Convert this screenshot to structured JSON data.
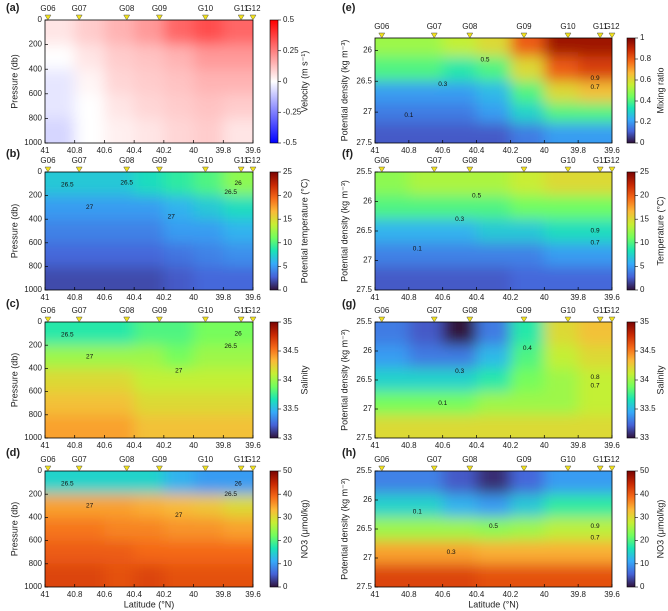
{
  "chart_data": [
    {
      "type": "heatmap",
      "panel_label": "(a)",
      "y_label": "Pressure (db)",
      "colorbar_label": "Velocity (m s⁻¹)",
      "xlim": [
        41,
        39.6
      ],
      "xticks": [
        41,
        40.8,
        40.6,
        40.4,
        40.2,
        40,
        39.8,
        39.6
      ],
      "ylim": [
        0,
        1000
      ],
      "yticks": [
        0,
        200,
        400,
        600,
        800,
        1000
      ],
      "clim": [
        -0.5,
        0.5
      ],
      "cticks": [
        -0.5,
        -0.25,
        0,
        0.25,
        0.5
      ],
      "colors": [
        "#0000ff",
        "#ffffff",
        "#ff0000"
      ],
      "stations": [
        "G06",
        "G07",
        "G08",
        "G09",
        "G10",
        "G11",
        "G12"
      ],
      "station_x": [
        40.98,
        40.77,
        40.45,
        40.23,
        39.92,
        39.68,
        39.6
      ],
      "x": [
        40.9,
        40.7,
        40.5,
        40.3,
        40.1,
        39.9,
        39.7
      ],
      "y": [
        100,
        300,
        500,
        700,
        900
      ],
      "z": [
        [
          0.05,
          0.1,
          0.15,
          0.2,
          0.3,
          0.35,
          0.3
        ],
        [
          0,
          0.05,
          0.1,
          0.12,
          0.15,
          0.2,
          0.2
        ],
        [
          -0.05,
          0.02,
          0.08,
          0.1,
          0.12,
          0.15,
          0.15
        ],
        [
          -0.05,
          0,
          0.05,
          0.08,
          0.1,
          0.12,
          0.1
        ],
        [
          -0.08,
          0,
          0.03,
          0.05,
          0.08,
          0.1,
          0.05
        ]
      ],
      "annotations": []
    },
    {
      "type": "heatmap",
      "panel_label": "(b)",
      "y_label": "Pressure (db)",
      "colorbar_label": "Potential temperature (°C)",
      "xlim": [
        41,
        39.6
      ],
      "xticks": [
        41,
        40.8,
        40.6,
        40.4,
        40.2,
        40,
        39.8,
        39.6
      ],
      "ylim": [
        0,
        1000
      ],
      "yticks": [
        0,
        200,
        400,
        600,
        800,
        1000
      ],
      "clim": [
        0,
        25
      ],
      "cticks": [
        0,
        5,
        10,
        15,
        20,
        25
      ],
      "colors": [
        "#30123b",
        "#4662d7",
        "#36aaf9",
        "#1ae4b6",
        "#72fe5e",
        "#c7ef34",
        "#fbb938",
        "#f56918",
        "#c92903",
        "#7a0403"
      ],
      "stations": [
        "G06",
        "G07",
        "G08",
        "G09",
        "G10",
        "G11",
        "G12"
      ],
      "station_x": [
        40.98,
        40.77,
        40.45,
        40.23,
        39.92,
        39.68,
        39.6
      ],
      "x": [
        40.9,
        40.7,
        40.5,
        40.3,
        40.1,
        39.9,
        39.7
      ],
      "y": [
        100,
        300,
        500,
        700,
        900
      ],
      "z": [
        [
          7,
          7,
          7,
          8,
          9,
          10,
          12
        ],
        [
          5,
          5,
          5,
          5,
          6,
          7,
          8
        ],
        [
          4,
          4,
          4,
          4,
          5,
          5,
          6
        ],
        [
          3,
          3,
          3,
          3,
          3.5,
          4,
          4.5
        ],
        [
          2,
          2,
          2,
          2,
          2.5,
          3,
          3
        ]
      ],
      "annotations": [
        {
          "text": "26.5",
          "x": 40.85,
          "y": 110
        },
        {
          "text": "26.5",
          "x": 40.45,
          "y": 90
        },
        {
          "text": "27",
          "x": 40.7,
          "y": 300
        },
        {
          "text": "27",
          "x": 40.15,
          "y": 380
        },
        {
          "text": "26.5",
          "x": 39.75,
          "y": 170
        },
        {
          "text": "26",
          "x": 39.7,
          "y": 95
        }
      ]
    },
    {
      "type": "heatmap",
      "panel_label": "(c)",
      "y_label": "Pressure (db)",
      "colorbar_label": "Salinity",
      "xlim": [
        41,
        39.6
      ],
      "xticks": [
        41,
        40.8,
        40.6,
        40.4,
        40.2,
        40,
        39.8,
        39.6
      ],
      "ylim": [
        0,
        1000
      ],
      "yticks": [
        0,
        200,
        400,
        600,
        800,
        1000
      ],
      "clim": [
        33,
        35
      ],
      "cticks": [
        33,
        33.5,
        34,
        34.5,
        35
      ],
      "colors": [
        "#30123b",
        "#4662d7",
        "#36aaf9",
        "#1ae4b6",
        "#72fe5e",
        "#c7ef34",
        "#fbb938",
        "#f56918",
        "#c92903",
        "#7a0403"
      ],
      "stations": [
        "G06",
        "G07",
        "G08",
        "G09",
        "G10",
        "G11",
        "G12"
      ],
      "station_x": [
        40.98,
        40.77,
        40.45,
        40.23,
        39.92,
        39.68,
        39.6
      ],
      "x": [
        40.9,
        40.7,
        40.5,
        40.3,
        40.1,
        39.9,
        39.7
      ],
      "y": [
        100,
        300,
        500,
        700,
        900
      ],
      "z": [
        [
          33.7,
          33.7,
          33.7,
          33.8,
          33.8,
          33.9,
          33.9
        ],
        [
          34,
          34,
          34,
          34,
          33.9,
          34,
          34
        ],
        [
          34.2,
          34.2,
          34.2,
          34.1,
          34.1,
          34.1,
          34.1
        ],
        [
          34.3,
          34.3,
          34.3,
          34.2,
          34.2,
          34.2,
          34.2
        ],
        [
          34.4,
          34.4,
          34.4,
          34.3,
          34.3,
          34.3,
          34.3
        ]
      ],
      "annotations": [
        {
          "text": "26.5",
          "x": 40.85,
          "y": 110
        },
        {
          "text": "27",
          "x": 40.7,
          "y": 300
        },
        {
          "text": "27",
          "x": 40.1,
          "y": 420
        },
        {
          "text": "26.5",
          "x": 39.75,
          "y": 210
        },
        {
          "text": "26",
          "x": 39.7,
          "y": 100
        }
      ]
    },
    {
      "type": "heatmap",
      "panel_label": "(d)",
      "y_label": "Pressure (db)",
      "colorbar_label": "NO3 (μmol/kg)",
      "x_label": "Latitude (°N)",
      "xlim": [
        41,
        39.6
      ],
      "xticks": [
        41,
        40.8,
        40.6,
        40.4,
        40.2,
        40,
        39.8,
        39.6
      ],
      "ylim": [
        0,
        1000
      ],
      "yticks": [
        0,
        200,
        400,
        600,
        800,
        1000
      ],
      "clim": [
        0,
        50
      ],
      "cticks": [
        0,
        10,
        20,
        30,
        40,
        50
      ],
      "colors": [
        "#30123b",
        "#4662d7",
        "#36aaf9",
        "#1ae4b6",
        "#72fe5e",
        "#c7ef34",
        "#fbb938",
        "#f56918",
        "#c92903",
        "#7a0403"
      ],
      "stations": [
        "G06",
        "G07",
        "G08",
        "G09",
        "G10",
        "G11",
        "G12"
      ],
      "station_x": [
        40.98,
        40.77,
        40.45,
        40.23,
        39.92,
        39.68,
        39.6
      ],
      "x": [
        40.9,
        40.7,
        40.5,
        40.3,
        40.1,
        39.9,
        39.7
      ],
      "y": [
        100,
        300,
        500,
        700,
        900
      ],
      "z": [
        [
          15,
          15,
          15,
          15,
          12,
          10,
          10
        ],
        [
          35,
          35,
          35,
          34,
          33,
          32,
          30
        ],
        [
          38,
          38,
          37,
          37,
          36,
          36,
          35
        ],
        [
          40,
          40,
          40,
          39,
          39,
          39,
          39
        ],
        [
          42,
          42,
          41,
          42,
          41,
          41,
          41
        ]
      ],
      "annotations": [
        {
          "text": "26.5",
          "x": 40.85,
          "y": 110
        },
        {
          "text": "27",
          "x": 40.7,
          "y": 300
        },
        {
          "text": "27",
          "x": 40.1,
          "y": 380
        },
        {
          "text": "26.5",
          "x": 39.75,
          "y": 200
        },
        {
          "text": "26",
          "x": 39.7,
          "y": 110
        }
      ]
    },
    {
      "type": "heatmap",
      "panel_label": "(e)",
      "y_label": "Potential density (kg m⁻³)",
      "colorbar_label": "Mixing ratio",
      "xlim": [
        41,
        39.6
      ],
      "xticks": [
        41,
        40.8,
        40.6,
        40.4,
        40.2,
        40,
        39.8,
        39.6
      ],
      "ylim": [
        25.8,
        27.5
      ],
      "yticks": [
        26,
        26.5,
        27,
        27.5
      ],
      "clim": [
        0,
        1
      ],
      "cticks": [
        0,
        0.2,
        0.4,
        0.6,
        0.8,
        1
      ],
      "colors": [
        "#30123b",
        "#4662d7",
        "#36aaf9",
        "#1ae4b6",
        "#72fe5e",
        "#c7ef34",
        "#fbb938",
        "#f56918",
        "#c92903",
        "#7a0403"
      ],
      "stations": [
        "G06",
        "G07",
        "G08",
        "G09",
        "G10",
        "G11",
        "G12"
      ],
      "station_x": [
        40.96,
        40.65,
        40.44,
        40.12,
        39.86,
        39.67,
        39.6
      ],
      "x": [
        40.9,
        40.7,
        40.5,
        40.3,
        40.1,
        39.9,
        39.7
      ],
      "y": [
        25.9,
        26.3,
        26.7,
        27.0,
        27.35
      ],
      "z": [
        [
          0.5,
          0.5,
          0.55,
          0.6,
          0.8,
          0.95,
          0.95
        ],
        [
          0.4,
          0.4,
          0.35,
          0.4,
          0.6,
          0.8,
          0.85
        ],
        [
          0.2,
          0.2,
          0.2,
          0.25,
          0.4,
          0.6,
          0.65
        ],
        [
          0.15,
          0.15,
          0.15,
          0.2,
          0.3,
          0.4,
          0.4
        ],
        [
          0.1,
          0.1,
          0.1,
          0.1,
          0.15,
          0.2,
          0.2
        ]
      ],
      "annotations": [
        {
          "text": "0.5",
          "x": 40.35,
          "y": 26.15
        },
        {
          "text": "0.3",
          "x": 40.6,
          "y": 26.55
        },
        {
          "text": "0.1",
          "x": 40.8,
          "y": 27.05
        },
        {
          "text": "0.9",
          "x": 39.7,
          "y": 26.45
        },
        {
          "text": "0.7",
          "x": 39.7,
          "y": 26.6
        }
      ]
    },
    {
      "type": "heatmap",
      "panel_label": "(f)",
      "y_label": "Potential density (kg m⁻³)",
      "colorbar_label": "Temperature (°C)",
      "xlim": [
        41,
        39.6
      ],
      "xticks": [
        41,
        40.8,
        40.6,
        40.4,
        40.2,
        40,
        39.8,
        39.6
      ],
      "ylim": [
        25.5,
        27.5
      ],
      "yticks": [
        25.5,
        26,
        26.5,
        27,
        27.5
      ],
      "clim": [
        0,
        25
      ],
      "cticks": [
        0,
        5,
        10,
        15,
        20,
        25
      ],
      "colors": [
        "#30123b",
        "#4662d7",
        "#36aaf9",
        "#1ae4b6",
        "#72fe5e",
        "#c7ef34",
        "#fbb938",
        "#f56918",
        "#c92903",
        "#7a0403"
      ],
      "stations": [
        "G06",
        "G07",
        "G08",
        "G09",
        "G10",
        "G11",
        "G12"
      ],
      "station_x": [
        40.96,
        40.65,
        40.44,
        40.12,
        39.86,
        39.67,
        39.6
      ],
      "x": [
        40.9,
        40.7,
        40.5,
        40.3,
        40.1,
        39.9,
        39.7
      ],
      "y": [
        25.7,
        26.1,
        26.5,
        26.9,
        27.3
      ],
      "z": [
        [
          12,
          13,
          13,
          13,
          14,
          15,
          15
        ],
        [
          10,
          10,
          10,
          10,
          11,
          11,
          11
        ],
        [
          6,
          6,
          6,
          7,
          7,
          8,
          8
        ],
        [
          4,
          4,
          4,
          4,
          4,
          5,
          5
        ],
        [
          2.5,
          2.5,
          2.5,
          2.5,
          3,
          3,
          3
        ]
      ],
      "annotations": [
        {
          "text": "0.5",
          "x": 40.4,
          "y": 25.9
        },
        {
          "text": "0.3",
          "x": 40.5,
          "y": 26.3
        },
        {
          "text": "0.1",
          "x": 40.75,
          "y": 26.8
        },
        {
          "text": "0.9",
          "x": 39.7,
          "y": 26.5
        },
        {
          "text": "0.7",
          "x": 39.7,
          "y": 26.7
        }
      ]
    },
    {
      "type": "heatmap",
      "panel_label": "(g)",
      "y_label": "Potential density (kg m⁻³)",
      "colorbar_label": "Salinity",
      "xlim": [
        41,
        39.6
      ],
      "xticks": [
        41,
        40.8,
        40.6,
        40.4,
        40.2,
        40,
        39.8,
        39.6
      ],
      "ylim": [
        25.5,
        27.5
      ],
      "yticks": [
        25.5,
        26,
        26.5,
        27,
        27.5
      ],
      "clim": [
        33,
        35
      ],
      "cticks": [
        33,
        33.5,
        34,
        34.5,
        35
      ],
      "colors": [
        "#30123b",
        "#4662d7",
        "#36aaf9",
        "#1ae4b6",
        "#72fe5e",
        "#c7ef34",
        "#fbb938",
        "#f56918",
        "#c92903",
        "#7a0403"
      ],
      "stations": [
        "G06",
        "G07",
        "G08",
        "G09",
        "G10",
        "G11",
        "G12"
      ],
      "station_x": [
        40.96,
        40.65,
        40.44,
        40.12,
        39.86,
        39.67,
        39.6
      ],
      "x": [
        40.9,
        40.7,
        40.5,
        40.3,
        40.1,
        39.9,
        39.7
      ],
      "y": [
        25.7,
        26.1,
        26.5,
        26.9,
        27.3
      ],
      "z": [
        [
          33.3,
          33.2,
          33.0,
          33.3,
          33.7,
          34.2,
          34.3
        ],
        [
          33.4,
          33.3,
          33.3,
          33.5,
          33.8,
          34.1,
          34.2
        ],
        [
          33.6,
          33.6,
          33.6,
          33.7,
          33.9,
          34.0,
          34.1
        ],
        [
          33.9,
          33.9,
          33.9,
          34.0,
          34.0,
          34.0,
          34.1
        ],
        [
          34.2,
          34.2,
          34.2,
          34.2,
          34.2,
          34.2,
          34.2
        ]
      ],
      "annotations": [
        {
          "text": "0.4",
          "x": 40.1,
          "y": 25.95
        },
        {
          "text": "0.3",
          "x": 40.5,
          "y": 26.35
        },
        {
          "text": "0.1",
          "x": 40.6,
          "y": 26.9
        },
        {
          "text": "0.8",
          "x": 39.7,
          "y": 26.45
        },
        {
          "text": "0.7",
          "x": 39.7,
          "y": 26.6
        }
      ]
    },
    {
      "type": "heatmap",
      "panel_label": "(h)",
      "y_label": "Potential density (kg m⁻³)",
      "colorbar_label": "NO3 (μmol/kg)",
      "x_label": "Latitude (°N)",
      "xlim": [
        41,
        39.6
      ],
      "xticks": [
        41,
        40.8,
        40.6,
        40.4,
        40.2,
        40,
        39.8,
        39.6
      ],
      "ylim": [
        25.5,
        27.5
      ],
      "yticks": [
        25.5,
        26,
        26.5,
        27,
        27.5
      ],
      "clim": [
        0,
        50
      ],
      "cticks": [
        0,
        10,
        20,
        30,
        40,
        50
      ],
      "colors": [
        "#30123b",
        "#4662d7",
        "#36aaf9",
        "#1ae4b6",
        "#72fe5e",
        "#c7ef34",
        "#fbb938",
        "#f56918",
        "#c92903",
        "#7a0403"
      ],
      "stations": [
        "G06",
        "G07",
        "G08",
        "G09",
        "G10",
        "G11",
        "G12"
      ],
      "station_x": [
        40.96,
        40.65,
        40.44,
        40.12,
        39.86,
        39.67,
        39.6
      ],
      "x": [
        40.9,
        40.7,
        40.5,
        40.3,
        40.1,
        39.9,
        39.7
      ],
      "y": [
        25.7,
        26.1,
        26.5,
        26.9,
        27.3
      ],
      "z": [
        [
          8,
          8,
          5,
          2,
          6,
          10,
          10
        ],
        [
          15,
          15,
          12,
          10,
          14,
          18,
          18
        ],
        [
          25,
          25,
          25,
          24,
          25,
          27,
          27
        ],
        [
          35,
          35,
          35,
          34,
          34,
          34,
          34
        ],
        [
          42,
          42,
          42,
          41,
          41,
          41,
          41
        ]
      ],
      "annotations": [
        {
          "text": "0.1",
          "x": 40.75,
          "y": 26.2
        },
        {
          "text": "0.5",
          "x": 40.3,
          "y": 26.45
        },
        {
          "text": "0.3",
          "x": 40.55,
          "y": 26.9
        },
        {
          "text": "0.9",
          "x": 39.7,
          "y": 26.45
        },
        {
          "text": "0.7",
          "x": 39.7,
          "y": 26.65
        }
      ]
    }
  ]
}
